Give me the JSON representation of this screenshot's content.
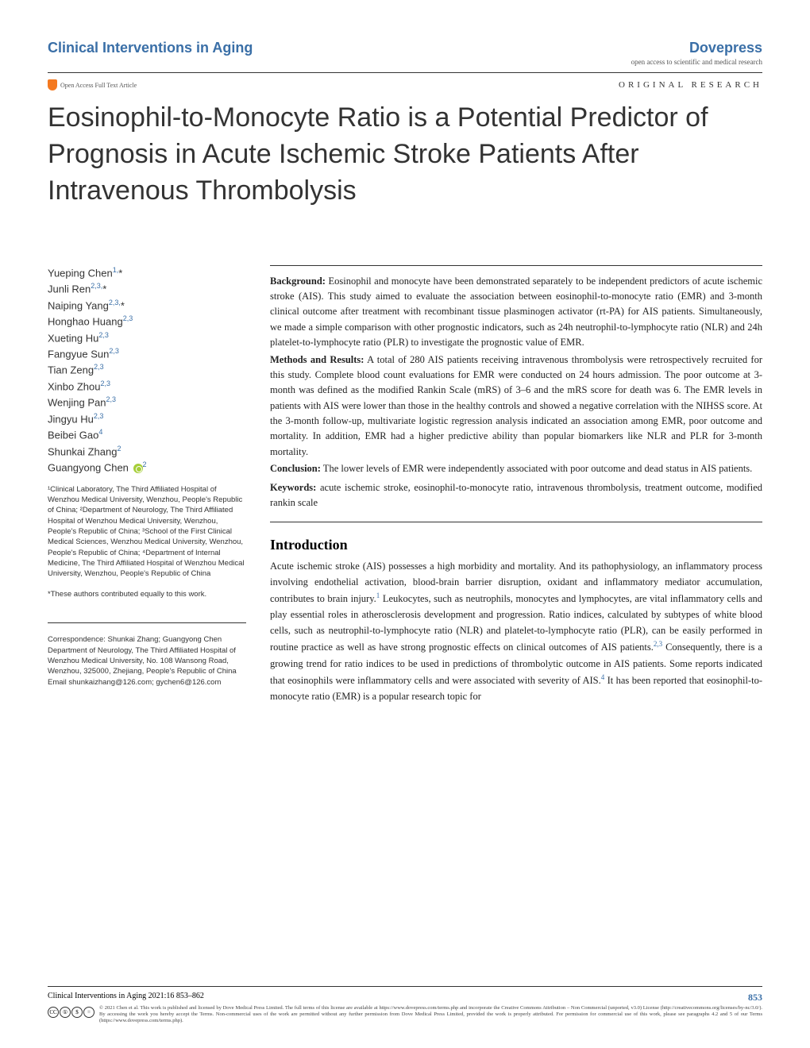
{
  "header": {
    "journal": "Clinical Interventions in Aging",
    "publisher": "Dovepress",
    "tagline": "open access to scientific and medical research",
    "oa_label": "Open Access Full Text Article",
    "article_type": "ORIGINAL RESEARCH"
  },
  "title": "Eosinophil-to-Monocyte Ratio is a Potential Predictor of Prognosis in Acute Ischemic Stroke Patients After Intravenous Thrombolysis",
  "authors": [
    {
      "name": "Yueping Chen",
      "aff": "1,",
      "star": true
    },
    {
      "name": "Junli Ren",
      "aff": "2,3,",
      "star": true
    },
    {
      "name": "Naiping Yang",
      "aff": "2,3,",
      "star": true
    },
    {
      "name": "Honghao Huang",
      "aff": "2,3"
    },
    {
      "name": "Xueting Hu",
      "aff": "2,3"
    },
    {
      "name": "Fangyue Sun",
      "aff": "2,3"
    },
    {
      "name": "Tian Zeng",
      "aff": "2,3"
    },
    {
      "name": "Xinbo Zhou",
      "aff": "2,3"
    },
    {
      "name": "Wenjing Pan",
      "aff": "2,3"
    },
    {
      "name": "Jingyu Hu",
      "aff": "2,3"
    },
    {
      "name": "Beibei Gao",
      "aff": "4"
    },
    {
      "name": "Shunkai Zhang",
      "aff": "2"
    },
    {
      "name": "Guangyong Chen",
      "aff": "2",
      "orcid": true
    }
  ],
  "affiliations": "¹Clinical Laboratory, The Third Affiliated Hospital of Wenzhou Medical University, Wenzhou, People's Republic of China; ²Department of Neurology, The Third Affiliated Hospital of Wenzhou Medical University, Wenzhou, People's Republic of China; ³School of the First Clinical Medical Sciences, Wenzhou Medical University, Wenzhou, People's Republic of China; ⁴Department of Internal Medicine, The Third Affiliated Hospital of Wenzhou Medical University, Wenzhou, People's Republic of China",
  "equal_contrib": "*These authors contributed equally to this work.",
  "correspondence": {
    "label": "Correspondence: Shunkai Zhang; Guangyong Chen",
    "address": "Department of Neurology, The Third Affiliated Hospital of Wenzhou Medical University, No. 108 Wansong Road, Wenzhou, 325000, Zhejiang, People's Republic of China",
    "email": "Email shunkaizhang@126.com; gychen6@126.com"
  },
  "abstract": {
    "background_label": "Background:",
    "background": " Eosinophil and monocyte have been demonstrated separately to be independent predictors of acute ischemic stroke (AIS). This study aimed to evaluate the association between eosinophil-to-monocyte ratio (EMR) and 3-month clinical outcome after treatment with recombinant tissue plasminogen activator (rt-PA) for AIS patients. Simultaneously, we made a simple comparison with other prognostic indicators, such as 24h neutrophil-to-lymphocyte ratio (NLR) and 24h platelet-to-lymphocyte ratio (PLR) to investigate the prognostic value of EMR.",
    "methods_label": "Methods and Results:",
    "methods": " A total of 280 AIS patients receiving intravenous thrombolysis were retrospectively recruited for this study. Complete blood count evaluations for EMR were conducted on 24 hours admission. The poor outcome at 3-month was defined as the modified Rankin Scale (mRS) of 3–6 and the mRS score for death was 6. The EMR levels in patients with AIS were lower than those in the healthy controls and showed a negative correlation with the NIHSS score. At the 3-month follow-up, multivariate logistic regression analysis indicated an association among EMR, poor outcome and mortality. In addition, EMR had a higher predictive ability than popular biomarkers like NLR and PLR for 3-month mortality.",
    "conclusion_label": "Conclusion:",
    "conclusion": " The lower levels of EMR were independently associated with poor outcome and dead status in AIS patients.",
    "keywords_label": "Keywords:",
    "keywords": " acute ischemic stroke, eosinophil-to-monocyte ratio, intravenous thrombolysis, treatment outcome, modified rankin scale"
  },
  "intro": {
    "heading": "Introduction",
    "p1a": "Acute ischemic stroke (AIS) possesses a high morbidity and mortality. And its pathophysiology, an inflammatory process involving endothelial activation, blood-brain barrier disruption, oxidant and inflammatory mediator accumulation, contributes to brain injury.",
    "ref1": "1",
    "p1b": " Leukocytes, such as neutrophils, monocytes and lymphocytes, are vital inflammatory cells and play essential roles in atherosclerosis development and progression. Ratio indices, calculated by subtypes of white blood cells, such as neutrophil-to-lymphocyte ratio (NLR) and platelet-to-lymphocyte ratio (PLR), can be easily performed in routine practice as well as have strong prognostic effects on clinical outcomes of AIS patients.",
    "ref2": "2,3",
    "p1c": " Consequently, there is a growing trend for ratio indices to be used in predictions of thrombolytic outcome in AIS patients. Some reports indicated that eosinophils were inflammatory cells and were associated with severity of AIS.",
    "ref3": "4",
    "p1d": " It has been reported that eosinophil-to-monocyte ratio (EMR) is a popular research topic for"
  },
  "footer": {
    "citation": "Clinical Interventions in Aging 2021:16 853–862",
    "page": "853",
    "cc": [
      "CC",
      "①",
      "$",
      "="
    ],
    "license": "© 2021 Chen et al. This work is published and licensed by Dove Medical Press Limited. The full terms of this license are available at https://www.dovepress.com/terms.php and incorporate the Creative Commons Attribution – Non Commercial (unported, v3.0) License (http://creativecommons.org/licenses/by-nc/3.0/). By accessing the work you hereby accept the Terms. Non-commercial uses of the work are permitted without any further permission from Dove Medical Press Limited, provided the work is properly attributed. For permission for commercial use of this work, please see paragraphs 4.2 and 5 of our Terms (https://www.dovepress.com/terms.php)."
  }
}
